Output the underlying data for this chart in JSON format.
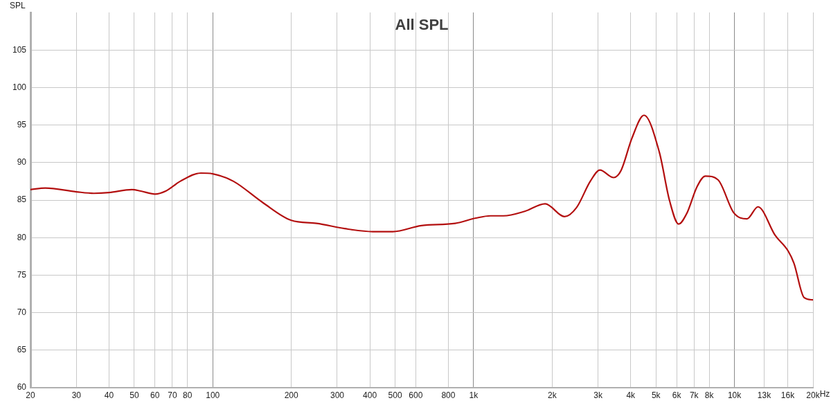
{
  "chart_data": {
    "type": "line",
    "title": "All SPL",
    "ylabel": "SPL",
    "log": "x",
    "grid": true,
    "legend": false,
    "marker": "none",
    "line_style": "solid",
    "xlim": [
      20,
      20000
    ],
    "ylim": [
      60,
      110
    ],
    "xticks": [
      20,
      30,
      40,
      50,
      60,
      70,
      80,
      100,
      200,
      300,
      400,
      500,
      600,
      800,
      {
        "value": 1000,
        "label": "1k"
      },
      {
        "value": 2000,
        "label": "2k"
      },
      {
        "value": 3000,
        "label": "3k"
      },
      {
        "value": 4000,
        "label": "4k"
      },
      {
        "value": 5000,
        "label": "5k"
      },
      {
        "value": 6000,
        "label": "6k"
      },
      {
        "value": 7000,
        "label": "7k"
      },
      {
        "value": 8000,
        "label": "8k"
      },
      {
        "value": 10000,
        "label": "10k"
      },
      {
        "value": 13000,
        "label": "13k"
      },
      {
        "value": 16000,
        "label": "16k"
      },
      {
        "value": 20000,
        "label": "20k"
      }
    ],
    "xlabel": "Hz",
    "yticks": [
      60,
      65,
      70,
      75,
      80,
      85,
      90,
      95,
      100,
      105
    ],
    "series": [
      {
        "color": "#b30f0f",
        "x": [
          20,
          22.8,
          30,
          35,
          40,
          49,
          53,
          60,
          66,
          75,
          90,
          100,
          120,
          155,
          200,
          250,
          320,
          410,
          490,
          630,
          850,
          1020,
          1160,
          1300,
          1570,
          1880,
          2230,
          2480,
          2800,
          3050,
          3440,
          3680,
          4040,
          4500,
          5150,
          5640,
          6110,
          6560,
          7190,
          7740,
          8650,
          9940,
          11170,
          12310,
          14320,
          16070,
          16900,
          18500,
          20000
        ],
        "values": [
          86.4,
          86.6,
          86.1,
          85.9,
          86.0,
          86.4,
          86.2,
          85.8,
          86.2,
          87.5,
          88.6,
          88.5,
          87.5,
          84.7,
          82.3,
          81.9,
          81.2,
          80.8,
          80.8,
          81.6,
          81.9,
          82.6,
          82.9,
          82.9,
          83.5,
          84.5,
          82.8,
          84.0,
          87.5,
          89.0,
          88.0,
          89.0,
          93.2,
          96.3,
          91.4,
          84.9,
          81.8,
          83.2,
          86.8,
          88.2,
          87.7,
          83.3,
          82.5,
          84.1,
          80.3,
          78.2,
          76.6,
          72.0,
          71.7
        ]
      }
    ]
  }
}
